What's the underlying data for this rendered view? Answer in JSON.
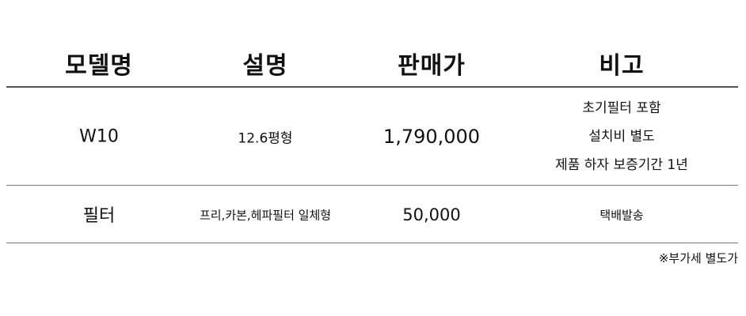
{
  "header": [
    "모델명",
    "설명",
    "판매가",
    "비고"
  ],
  "rows": [
    {
      "model": "W10",
      "description": "12.6평형",
      "price": "1,790,000",
      "remarks": [
        "초기필터 포함",
        "설치비 별도",
        "제품 하자 보증기간 1년"
      ]
    },
    {
      "model": "필터",
      "description": "프리,카본,헤파필터 일체형",
      "price": "50,000",
      "remarks": [
        "택배발송"
      ]
    }
  ],
  "note": "※부가세 별도가"
}
